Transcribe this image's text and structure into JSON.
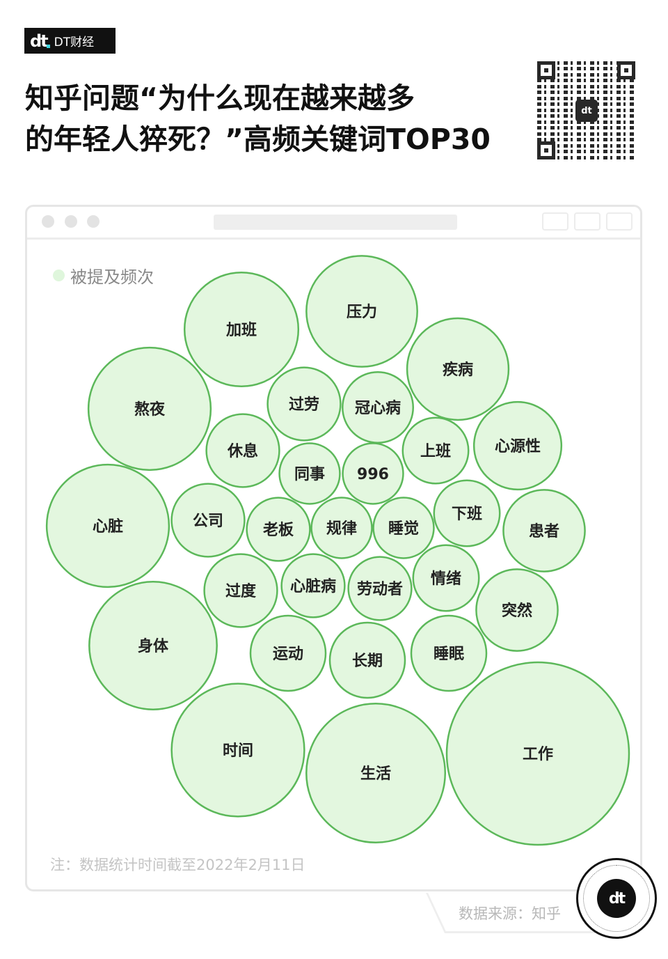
{
  "brand": {
    "name": "DT财经",
    "logo": "dt"
  },
  "title": {
    "line1": "知乎问题“为什么现在越来越多",
    "line2": "的年轻人猝死？”高频关键词TOP30"
  },
  "colors": {
    "bubble_fill": "#e3f7df",
    "bubble_stroke": "#5cb85a",
    "legend_dot": "#dff6dc"
  },
  "chart_data": {
    "type": "bubble",
    "legend": [
      {
        "label": "被提及频次",
        "color": "#dff6dc"
      }
    ],
    "value_note": "relative bubble area, largest = 100 (no values printed)",
    "points": [
      {
        "label": "工作",
        "value": 100
      },
      {
        "label": "生活",
        "value": 58
      },
      {
        "label": "时间",
        "value": 53
      },
      {
        "label": "身体",
        "value": 49
      },
      {
        "label": "心脏",
        "value": 45
      },
      {
        "label": "熬夜",
        "value": 45
      },
      {
        "label": "加班",
        "value": 39
      },
      {
        "label": "压力",
        "value": 37
      },
      {
        "label": "疾病",
        "value": 31
      },
      {
        "label": "心源性",
        "value": 23
      },
      {
        "label": "患者",
        "value": 20
      },
      {
        "label": "突然",
        "value": 20
      },
      {
        "label": "运动",
        "value": 17
      },
      {
        "label": "长期",
        "value": 17
      },
      {
        "label": "睡眠",
        "value": 17
      },
      {
        "label": "公司",
        "value": 16
      },
      {
        "label": "过度",
        "value": 16
      },
      {
        "label": "过劳",
        "value": 16
      },
      {
        "label": "休息",
        "value": 16
      },
      {
        "label": "冠心病",
        "value": 15
      },
      {
        "label": "上班",
        "value": 13
      },
      {
        "label": "下班",
        "value": 13
      },
      {
        "label": "情绪",
        "value": 13
      },
      {
        "label": "劳动者",
        "value": 12
      },
      {
        "label": "老板",
        "value": 12
      },
      {
        "label": "心脏病",
        "value": 12
      },
      {
        "label": "同事",
        "value": 11
      },
      {
        "label": "996",
        "value": 11
      },
      {
        "label": "规律",
        "value": 11
      },
      {
        "label": "睡觉",
        "value": 11
      }
    ]
  },
  "footer": {
    "note": "注：数据统计时间截至2022年2月11日",
    "source": "数据来源：知乎",
    "badge_logo": "dt"
  }
}
